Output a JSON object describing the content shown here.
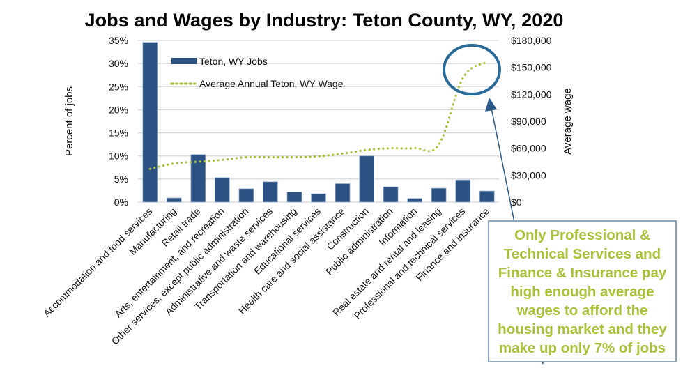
{
  "chart_data": {
    "type": "bar",
    "title": "Jobs and Wages by Industry:  Teton County, WY, 2020",
    "xlabel": "",
    "ylabel": "Percent of jobs",
    "y2label": "Average wage",
    "ylim": [
      0,
      35
    ],
    "y2lim": [
      0,
      180000
    ],
    "yticks": [
      "0%",
      "5%",
      "10%",
      "15%",
      "20%",
      "25%",
      "30%",
      "35%"
    ],
    "y2ticks": [
      "$0",
      "$30,000",
      "$60,000",
      "$90,000",
      "$120,000",
      "$150,000",
      "$180,000"
    ],
    "grid": true,
    "legend_position": "upper-left-inside",
    "categories": [
      "Accommodation and food services",
      "Manufacturing",
      "Retail trade",
      "Arts, entertainment, and recreation",
      "Other services, except public administration",
      "Administrative and waste services",
      "Transportation and warehousing",
      "Educational services",
      "Health care and social assistance",
      "Construction",
      "Public administration",
      "Information",
      "Real estate and rental and leasing",
      "Professional and technical services",
      "Finance and insurance"
    ],
    "series": [
      {
        "name": "Teton, WY Jobs",
        "type": "bar",
        "axis": "left",
        "color": "#2b5282",
        "values": [
          34.6,
          0.9,
          10.3,
          5.3,
          2.9,
          4.4,
          2.2,
          1.8,
          4.0,
          10.0,
          3.3,
          0.8,
          3.0,
          4.8,
          2.4
        ]
      },
      {
        "name": "Average Annual Teton, WY Wage",
        "type": "line",
        "style": "dotted",
        "axis": "right",
        "color": "#a8c23a",
        "values": [
          37000,
          43000,
          45000,
          47000,
          50000,
          50000,
          50000,
          51000,
          54000,
          58000,
          60000,
          60000,
          64000,
          138000,
          156000
        ]
      }
    ],
    "annotations": [
      {
        "type": "ellipse",
        "target": [
          "Professional and technical services",
          "Finance and insurance"
        ],
        "color": "#2a6a98"
      },
      {
        "type": "callout",
        "text": "Only Professional & Technical Services and Finance & Insurance pay high enough average wages to afford the housing market and they make up only 7% of jobs",
        "color": "#a8c23a"
      }
    ]
  },
  "title": "Jobs and Wages by Industry:  Teton County, WY, 2020",
  "legend": {
    "jobs_label": "Teton, WY Jobs",
    "wage_label": "Average Annual Teton, WY Wage"
  },
  "axes": {
    "left_title": "Percent of jobs",
    "right_title": "Average wage"
  },
  "callout": {
    "text": "Only Professional &\nTechnical Services and\nFinance & Insurance pay\nhigh enough average\nwages to afford the\nhousing market and they\nmake up only 7% of jobs"
  },
  "colors": {
    "bar": "#2b5282",
    "bar_edge": "#9fb6d4",
    "line": "#a8c23a",
    "grid": "#d9d9d9",
    "circle": "#2a6a98",
    "arrow": "#2c5a8a",
    "callout_border": "#8ea7bf"
  }
}
